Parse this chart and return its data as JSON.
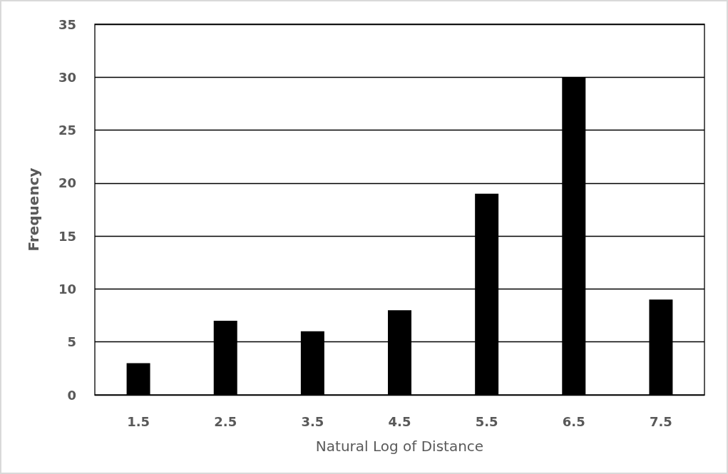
{
  "chart_data": {
    "type": "bar",
    "xlabel": "Natural Log of Distance",
    "ylabel": "Frequency",
    "categories": [
      "1.5",
      "2.5",
      "3.5",
      "4.5",
      "5.5",
      "6.5",
      "7.5"
    ],
    "values": [
      3,
      7,
      6,
      8,
      19,
      30,
      9
    ],
    "color": "#000000",
    "ylim": [
      0,
      35
    ],
    "yticks": [
      0,
      5,
      10,
      15,
      20,
      25,
      30,
      35
    ],
    "grid": "y"
  }
}
